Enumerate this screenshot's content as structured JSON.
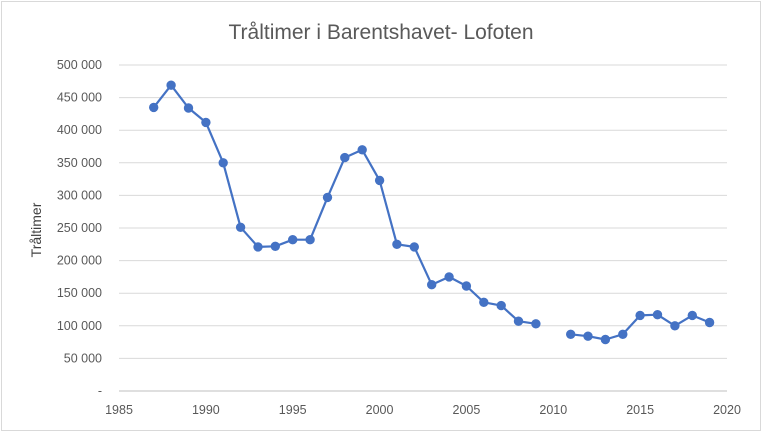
{
  "chart_data": {
    "type": "line",
    "title": "Tråltimer i Barentshavet- Lofoten",
    "xlabel": "",
    "ylabel": "Tråltimer",
    "xlim": [
      1985,
      2020
    ],
    "ylim": [
      0,
      500000
    ],
    "x_ticks": [
      1985,
      1990,
      1995,
      2000,
      2005,
      2010,
      2015,
      2020
    ],
    "x_tick_labels": [
      "1985",
      "1990",
      "1995",
      "2000",
      "2005",
      "2010",
      "2015",
      "2020"
    ],
    "y_ticks": [
      0,
      50000,
      100000,
      150000,
      200000,
      250000,
      300000,
      350000,
      400000,
      450000,
      500000
    ],
    "y_tick_labels": [
      "-",
      "50 000",
      "100 000",
      "150 000",
      "200 000",
      "250 000",
      "300 000",
      "350 000",
      "400 000",
      "450 000",
      "500 000"
    ],
    "grid": true,
    "legend": "none",
    "color": "#4472c4",
    "series": [
      {
        "segments": [
          {
            "x": [
              1987,
              1988,
              1989,
              1990,
              1991,
              1992,
              1993,
              1994,
              1995,
              1996,
              1997,
              1998,
              1999,
              2000,
              2001,
              2002,
              2003,
              2004,
              2005,
              2006,
              2007,
              2008,
              2009
            ],
            "y": [
              435000,
              469000,
              434000,
              412000,
              350000,
              251000,
              221000,
              222000,
              232000,
              232000,
              297000,
              358000,
              370000,
              323000,
              225000,
              221000,
              163000,
              175000,
              161000,
              136000,
              131000,
              107000,
              103000
            ]
          },
          {
            "x": [
              2011,
              2012,
              2013,
              2014,
              2015,
              2016,
              2017,
              2018,
              2019
            ],
            "y": [
              87000,
              84000,
              79000,
              87000,
              116000,
              117000,
              100000,
              116000,
              105000
            ]
          }
        ]
      }
    ]
  }
}
